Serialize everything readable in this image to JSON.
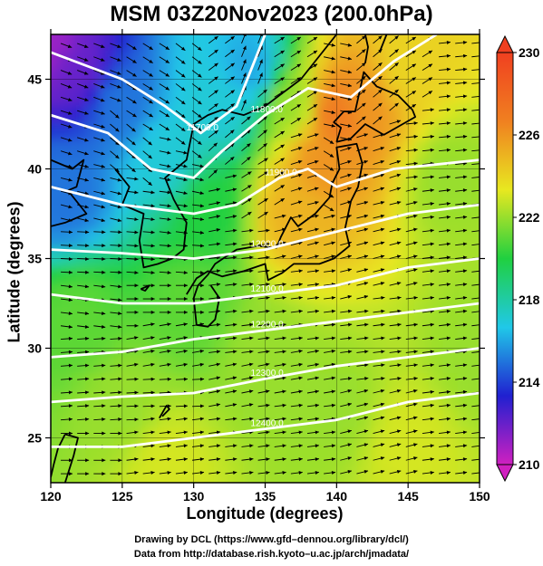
{
  "chart_data": {
    "type": "heatmap",
    "title": "MSM 03Z20Nov2023 (200.0hPa)",
    "xlabel": "Longitude (degrees)",
    "ylabel": "Latitude  (degrees)",
    "xlim": [
      120,
      150
    ],
    "ylim": [
      22.5,
      47.5
    ],
    "xticks": [
      "120",
      "125",
      "130",
      "135",
      "140",
      "145",
      "150"
    ],
    "yticks": [
      "25",
      "30",
      "35",
      "40",
      "45"
    ],
    "colorbar": {
      "min": 210,
      "max": 230,
      "ticks": [
        "230",
        "226",
        "222",
        "218",
        "214",
        "210"
      ],
      "colors": [
        "#d020c0",
        "#2020d0",
        "#20c8e8",
        "#20d040",
        "#e8e820",
        "#f08020",
        "#f04020"
      ]
    },
    "field_anchors": [
      {
        "lon": 120,
        "lat": 47.5,
        "value": 211
      },
      {
        "lon": 122,
        "lat": 46,
        "value": 212
      },
      {
        "lon": 125,
        "lat": 44,
        "value": 215
      },
      {
        "lon": 121,
        "lat": 39,
        "value": 215
      },
      {
        "lon": 128,
        "lat": 41,
        "value": 217
      },
      {
        "lon": 132,
        "lat": 44,
        "value": 217
      },
      {
        "lon": 134,
        "lat": 46,
        "value": 216
      },
      {
        "lon": 131,
        "lat": 38,
        "value": 220
      },
      {
        "lon": 137,
        "lat": 44,
        "value": 222
      },
      {
        "lon": 139,
        "lat": 41,
        "value": 226
      },
      {
        "lon": 140,
        "lat": 43.5,
        "value": 227
      },
      {
        "lon": 142,
        "lat": 44,
        "value": 226
      },
      {
        "lon": 137,
        "lat": 38,
        "value": 225
      },
      {
        "lon": 145,
        "lat": 46,
        "value": 224
      },
      {
        "lon": 148,
        "lat": 40,
        "value": 222
      },
      {
        "lon": 122,
        "lat": 32,
        "value": 221
      },
      {
        "lon": 125,
        "lat": 27,
        "value": 222
      },
      {
        "lon": 130,
        "lat": 33,
        "value": 221
      },
      {
        "lon": 135,
        "lat": 30,
        "value": 222
      },
      {
        "lon": 140,
        "lat": 27,
        "value": 222
      },
      {
        "lon": 145,
        "lat": 25,
        "value": 223
      },
      {
        "lon": 150,
        "lat": 30,
        "value": 222
      },
      {
        "lon": 128,
        "lat": 24,
        "value": 223
      }
    ],
    "contours": [
      {
        "label": "11700.0",
        "points": [
          [
            120,
            46.5
          ],
          [
            125,
            45
          ],
          [
            128,
            43.5
          ],
          [
            130.5,
            42
          ],
          [
            133,
            43.5
          ],
          [
            135,
            47.5
          ]
        ]
      },
      {
        "label": "11800.0",
        "points": [
          [
            120,
            43
          ],
          [
            124,
            42
          ],
          [
            127,
            40
          ],
          [
            130,
            39.5
          ],
          [
            132,
            41
          ],
          [
            135,
            43
          ],
          [
            138,
            44.5
          ],
          [
            141,
            44
          ],
          [
            144,
            46
          ],
          [
            147,
            47.5
          ]
        ]
      },
      {
        "label": "11900.0",
        "points": [
          [
            120,
            39
          ],
          [
            125,
            38
          ],
          [
            130,
            37.5
          ],
          [
            133,
            38
          ],
          [
            136,
            39.5
          ],
          [
            138,
            40
          ],
          [
            140,
            39
          ],
          [
            144,
            40
          ],
          [
            150,
            40.5
          ]
        ]
      },
      {
        "label": "12000.0",
        "points": [
          [
            120,
            35.5
          ],
          [
            125,
            35.3
          ],
          [
            130,
            35
          ],
          [
            135,
            35.5
          ],
          [
            140,
            36.5
          ],
          [
            145,
            37.5
          ],
          [
            150,
            38
          ]
        ]
      },
      {
        "label": "12100.0",
        "points": [
          [
            120,
            33
          ],
          [
            125,
            32.5
          ],
          [
            130,
            32.5
          ],
          [
            135,
            33
          ],
          [
            140,
            33.5
          ],
          [
            145,
            34.5
          ],
          [
            150,
            35
          ]
        ]
      },
      {
        "label": "12200.0",
        "points": [
          [
            120,
            29.5
          ],
          [
            125,
            29.8
          ],
          [
            130,
            30.5
          ],
          [
            135,
            31
          ],
          [
            140,
            31.5
          ],
          [
            145,
            32
          ],
          [
            150,
            32.5
          ]
        ]
      },
      {
        "label": "12300.0",
        "points": [
          [
            120,
            27
          ],
          [
            125,
            27.3
          ],
          [
            130,
            27.5
          ],
          [
            135,
            28.3
          ],
          [
            140,
            29
          ],
          [
            145,
            29.5
          ],
          [
            150,
            30
          ]
        ]
      },
      {
        "label": "12400.0",
        "points": [
          [
            120,
            24.5
          ],
          [
            125,
            24.5
          ],
          [
            130,
            25
          ],
          [
            135,
            25.5
          ],
          [
            140,
            26
          ],
          [
            145,
            27
          ],
          [
            150,
            27.5
          ]
        ]
      }
    ],
    "legend": "colorbar-right",
    "grid": true
  },
  "footer": {
    "line1": "Drawing by DCL (https://www.gfd–dennou.org/library/dcl/)",
    "line2": "Data from http://database.rish.kyoto–u.ac.jp/arch/jmadata/"
  }
}
